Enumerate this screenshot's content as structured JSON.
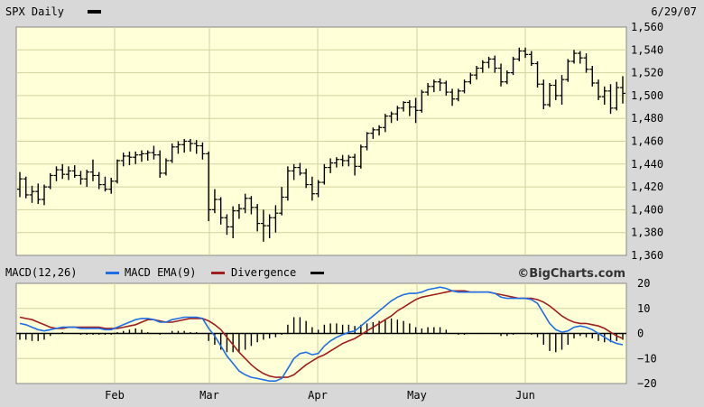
{
  "header": {
    "title": "SPX Daily",
    "date": "6/29/07"
  },
  "macd_legend": {
    "macd": "MACD(12,26)",
    "ema": "MACD EMA(9)",
    "divergence": "Divergence",
    "brand": "©BigCharts.com"
  },
  "colors": {
    "plot_bg": "#ffffd8",
    "grid": "#d2d2a0",
    "price_bars": "#000000",
    "macd_line": "#1e6fe6",
    "ema_line": "#a01e1e",
    "divergence": "#000000"
  },
  "chart_data": [
    {
      "type": "ohlc",
      "title": "SPX Daily",
      "xlabel": "",
      "ylabel": "",
      "ylim": [
        1360,
        1560
      ],
      "y_ticks": [
        "1,560",
        "1,540",
        "1,520",
        "1,500",
        "1,480",
        "1,460",
        "1,440",
        "1,420",
        "1,400",
        "1,380",
        "1,360"
      ],
      "x_ticks": [
        "Feb",
        "Mar",
        "Apr",
        "May",
        "Jun"
      ],
      "grid": true,
      "series": [
        {
          "values": [
            [
              1418,
              1433,
              1411,
              1427
            ],
            [
              1427,
              1429,
              1410,
              1413
            ],
            [
              1413,
              1421,
              1406,
              1416
            ],
            [
              1416,
              1423,
              1405,
              1409
            ],
            [
              1409,
              1422,
              1404,
              1420
            ],
            [
              1420,
              1432,
              1418,
              1430
            ],
            [
              1430,
              1438,
              1425,
              1435
            ],
            [
              1435,
              1440,
              1427,
              1431
            ],
            [
              1431,
              1438,
              1426,
              1434
            ],
            [
              1434,
              1439,
              1428,
              1430
            ],
            [
              1430,
              1434,
              1422,
              1427
            ],
            [
              1427,
              1435,
              1420,
              1433
            ],
            [
              1433,
              1444,
              1425,
              1430
            ],
            [
              1430,
              1433,
              1418,
              1422
            ],
            [
              1422,
              1429,
              1416,
              1418
            ],
            [
              1418,
              1428,
              1414,
              1425
            ],
            [
              1425,
              1444,
              1423,
              1443
            ],
            [
              1443,
              1450,
              1438,
              1447
            ],
            [
              1447,
              1451,
              1439,
              1446
            ],
            [
              1446,
              1451,
              1440,
              1448
            ],
            [
              1448,
              1452,
              1442,
              1449
            ],
            [
              1449,
              1452,
              1443,
              1450
            ],
            [
              1450,
              1456,
              1444,
              1448
            ],
            [
              1448,
              1452,
              1428,
              1432
            ],
            [
              1432,
              1445,
              1430,
              1443
            ],
            [
              1443,
              1458,
              1441,
              1455
            ],
            [
              1455,
              1460,
              1449,
              1457
            ],
            [
              1457,
              1462,
              1450,
              1460
            ],
            [
              1460,
              1462,
              1451,
              1458
            ],
            [
              1458,
              1461,
              1449,
              1456
            ],
            [
              1456,
              1459,
              1444,
              1449
            ],
            [
              1449,
              1451,
              1390,
              1400
            ],
            [
              1400,
              1418,
              1397,
              1409
            ],
            [
              1409,
              1411,
              1387,
              1393
            ],
            [
              1393,
              1396,
              1378,
              1385
            ],
            [
              1385,
              1403,
              1375,
              1399
            ],
            [
              1399,
              1405,
              1392,
              1401
            ],
            [
              1401,
              1414,
              1397,
              1410
            ],
            [
              1410,
              1412,
              1396,
              1402
            ],
            [
              1402,
              1405,
              1381,
              1388
            ],
            [
              1388,
              1400,
              1372,
              1386
            ],
            [
              1386,
              1396,
              1375,
              1393
            ],
            [
              1393,
              1404,
              1380,
              1397
            ],
            [
              1397,
              1420,
              1395,
              1411
            ],
            [
              1411,
              1438,
              1408,
              1434
            ],
            [
              1434,
              1440,
              1426,
              1437
            ],
            [
              1437,
              1441,
              1430,
              1432
            ],
            [
              1432,
              1436,
              1419,
              1422
            ],
            [
              1422,
              1429,
              1408,
              1414
            ],
            [
              1414,
              1426,
              1411,
              1424
            ],
            [
              1424,
              1440,
              1422,
              1437
            ],
            [
              1437,
              1445,
              1432,
              1441
            ],
            [
              1441,
              1446,
              1437,
              1444
            ],
            [
              1444,
              1448,
              1438,
              1443
            ],
            [
              1443,
              1448,
              1438,
              1446
            ],
            [
              1446,
              1449,
              1430,
              1438
            ],
            [
              1438,
              1457,
              1436,
              1455
            ],
            [
              1455,
              1468,
              1452,
              1467
            ],
            [
              1467,
              1472,
              1462,
              1470
            ],
            [
              1470,
              1474,
              1465,
              1472
            ],
            [
              1472,
              1484,
              1468,
              1482
            ],
            [
              1482,
              1486,
              1476,
              1484
            ],
            [
              1484,
              1491,
              1478,
              1489
            ],
            [
              1489,
              1495,
              1486,
              1494
            ],
            [
              1494,
              1496,
              1482,
              1490
            ],
            [
              1490,
              1498,
              1476,
              1487
            ],
            [
              1487,
              1505,
              1485,
              1503
            ],
            [
              1503,
              1511,
              1500,
              1508
            ],
            [
              1508,
              1514,
              1503,
              1512
            ],
            [
              1512,
              1515,
              1504,
              1511
            ],
            [
              1511,
              1513,
              1500,
              1503
            ],
            [
              1503,
              1506,
              1491,
              1497
            ],
            [
              1497,
              1506,
              1495,
              1504
            ],
            [
              1504,
              1514,
              1502,
              1512
            ],
            [
              1512,
              1520,
              1510,
              1518
            ],
            [
              1518,
              1526,
              1514,
              1524
            ],
            [
              1524,
              1531,
              1520,
              1529
            ],
            [
              1529,
              1534,
              1524,
              1532
            ],
            [
              1532,
              1535,
              1520,
              1524
            ],
            [
              1524,
              1528,
              1508,
              1512
            ],
            [
              1512,
              1522,
              1510,
              1520
            ],
            [
              1520,
              1534,
              1518,
              1532
            ],
            [
              1532,
              1542,
              1530,
              1539
            ],
            [
              1539,
              1542,
              1533,
              1536
            ],
            [
              1536,
              1539,
              1526,
              1528
            ],
            [
              1528,
              1530,
              1507,
              1510
            ],
            [
              1510,
              1514,
              1488,
              1492
            ],
            [
              1492,
              1511,
              1490,
              1509
            ],
            [
              1509,
              1514,
              1496,
              1500
            ],
            [
              1500,
              1518,
              1492,
              1514
            ],
            [
              1514,
              1532,
              1512,
              1530
            ],
            [
              1530,
              1540,
              1528,
              1537
            ],
            [
              1537,
              1539,
              1528,
              1533
            ],
            [
              1533,
              1537,
              1520,
              1523
            ],
            [
              1523,
              1526,
              1508,
              1511
            ],
            [
              1511,
              1514,
              1496,
              1499
            ],
            [
              1499,
              1508,
              1492,
              1504
            ],
            [
              1504,
              1510,
              1484,
              1489
            ],
            [
              1489,
              1512,
              1487,
              1507
            ],
            [
              1507,
              1517,
              1493,
              1502
            ]
          ]
        }
      ]
    },
    {
      "type": "line",
      "title": "",
      "xlabel": "",
      "ylabel": "",
      "ylim": [
        -20,
        20
      ],
      "y_ticks": [
        "20",
        "10",
        "0",
        "−10",
        "−20"
      ],
      "x_ticks": [
        "Feb",
        "Mar",
        "Apr",
        "May",
        "Jun"
      ],
      "grid": true,
      "series": [
        {
          "name": "MACD(12,26)",
          "values": [
            4.0,
            3.5,
            2.5,
            1.5,
            1.0,
            1.5,
            2.0,
            2.5,
            2.5,
            2.5,
            2.0,
            2.0,
            2.0,
            2.0,
            1.5,
            1.5,
            2.5,
            3.5,
            4.5,
            5.5,
            6.0,
            6.0,
            5.5,
            4.5,
            4.5,
            5.5,
            6.0,
            6.5,
            6.5,
            6.5,
            6.0,
            2.0,
            -1.0,
            -5.0,
            -9.0,
            -12.0,
            -15.0,
            -16.5,
            -17.5,
            -18.0,
            -18.5,
            -19.0,
            -19.0,
            -18.0,
            -14.0,
            -10.0,
            -8.0,
            -7.5,
            -8.5,
            -8.0,
            -5.0,
            -3.0,
            -1.5,
            -0.5,
            0.5,
            1.0,
            3.0,
            5.0,
            7.0,
            9.0,
            11.0,
            13.0,
            14.5,
            15.5,
            16.0,
            16.0,
            16.5,
            17.5,
            18.0,
            18.5,
            18.0,
            17.0,
            16.5,
            16.5,
            16.5,
            16.5,
            16.5,
            16.5,
            16.0,
            14.5,
            14.0,
            14.0,
            14.0,
            14.0,
            13.5,
            12.0,
            8.0,
            4.0,
            1.5,
            0.5,
            1.0,
            2.5,
            3.0,
            2.5,
            1.5,
            0.0,
            -1.5,
            -3.0,
            -4.0,
            -4.5
          ]
        },
        {
          "name": "MACD EMA(9)",
          "values": [
            6.5,
            6.0,
            5.5,
            4.5,
            3.5,
            2.5,
            2.0,
            2.0,
            2.5,
            2.5,
            2.5,
            2.5,
            2.5,
            2.5,
            2.0,
            2.0,
            2.0,
            2.5,
            3.0,
            3.5,
            4.5,
            5.5,
            5.5,
            5.0,
            4.5,
            4.5,
            5.0,
            5.5,
            6.0,
            6.0,
            6.0,
            5.0,
            3.5,
            1.5,
            -1.5,
            -4.5,
            -7.5,
            -10.0,
            -12.5,
            -14.5,
            -16.0,
            -17.0,
            -17.5,
            -17.5,
            -17.5,
            -16.5,
            -14.5,
            -12.5,
            -11.0,
            -9.5,
            -8.5,
            -7.0,
            -5.5,
            -4.0,
            -3.0,
            -2.0,
            -0.5,
            1.0,
            2.5,
            4.0,
            5.5,
            7.0,
            9.0,
            10.5,
            12.0,
            13.5,
            14.5,
            15.0,
            15.5,
            16.0,
            16.5,
            17.0,
            17.0,
            17.0,
            16.5,
            16.5,
            16.5,
            16.5,
            16.0,
            15.5,
            15.0,
            14.5,
            14.0,
            14.0,
            14.0,
            13.5,
            12.5,
            11.0,
            9.0,
            7.0,
            5.5,
            4.5,
            4.0,
            4.0,
            3.5,
            3.0,
            2.0,
            0.5,
            -1.0,
            -2.0
          ]
        },
        {
          "name": "Divergence",
          "type": "bar",
          "values": [
            -2.5,
            -2.5,
            -3.0,
            -3.0,
            -2.5,
            -1.0,
            0.0,
            0.5,
            0.0,
            0.0,
            -0.5,
            -0.5,
            -0.5,
            -0.5,
            -0.5,
            -0.5,
            0.5,
            1.0,
            1.5,
            2.0,
            1.5,
            0.5,
            0.0,
            -0.5,
            0.0,
            1.0,
            1.0,
            1.0,
            0.5,
            0.5,
            0.0,
            -3.0,
            -4.5,
            -6.5,
            -7.5,
            -7.5,
            -7.5,
            -6.5,
            -5.0,
            -3.5,
            -2.5,
            -2.0,
            -1.5,
            -0.5,
            3.5,
            6.5,
            6.5,
            5.0,
            2.5,
            1.5,
            3.5,
            4.0,
            4.0,
            3.5,
            3.5,
            3.0,
            3.5,
            4.0,
            4.5,
            5.0,
            5.5,
            6.0,
            5.5,
            5.0,
            4.0,
            2.5,
            2.0,
            2.5,
            2.5,
            2.5,
            1.5,
            0.0,
            -0.5,
            -0.5,
            0.0,
            0.0,
            0.0,
            0.0,
            0.0,
            -1.0,
            -1.0,
            -0.5,
            0.0,
            0.0,
            -0.5,
            -1.5,
            -4.5,
            -7.0,
            -7.5,
            -6.5,
            -4.5,
            -2.0,
            -1.0,
            -1.5,
            -2.0,
            -3.0,
            -3.5,
            -3.5,
            -3.0,
            -2.5
          ]
        }
      ]
    }
  ]
}
